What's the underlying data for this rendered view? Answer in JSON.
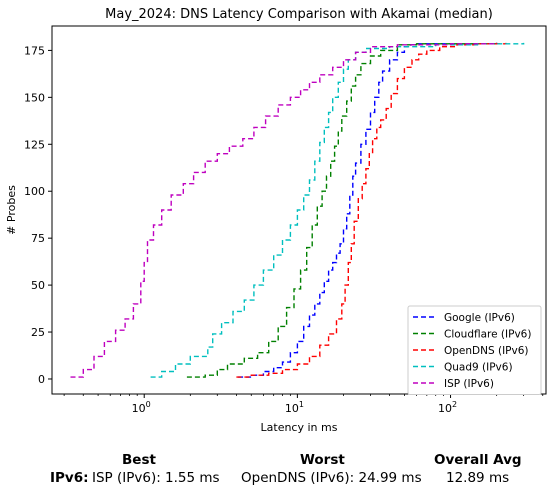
{
  "chart_data": {
    "type": "line",
    "title": "May_2024: DNS Latency Comparison with Akamai (median)",
    "xlabel": "Latency in ms",
    "ylabel": "# Probes",
    "xscale": "log",
    "xlim": [
      0.25,
      420
    ],
    "ylim": [
      -8,
      188
    ],
    "xticks": [
      {
        "value": 1,
        "label": "10^0"
      },
      {
        "value": 10,
        "label": "10^1"
      },
      {
        "value": 100,
        "label": "10^2"
      }
    ],
    "yticks": [
      0,
      25,
      50,
      75,
      100,
      125,
      150,
      175
    ],
    "grid": false,
    "legend_position": "lower-right",
    "series": [
      {
        "name": "Google (IPv6)",
        "color": "#0000ff",
        "points": [
          [
            4.1,
            1
          ],
          [
            5,
            2
          ],
          [
            6,
            4
          ],
          [
            7,
            6
          ],
          [
            8,
            9
          ],
          [
            9,
            14
          ],
          [
            10,
            20
          ],
          [
            11,
            28
          ],
          [
            12,
            34
          ],
          [
            13,
            40
          ],
          [
            14,
            46
          ],
          [
            15,
            52
          ],
          [
            16,
            58
          ],
          [
            17,
            62
          ],
          [
            18,
            67
          ],
          [
            19,
            72
          ],
          [
            20,
            80
          ],
          [
            21,
            88
          ],
          [
            22,
            98
          ],
          [
            23,
            108
          ],
          [
            24,
            115
          ],
          [
            26,
            125
          ],
          [
            28,
            133
          ],
          [
            30,
            142
          ],
          [
            32,
            150
          ],
          [
            34,
            158
          ],
          [
            36,
            164
          ],
          [
            40,
            170
          ],
          [
            45,
            174
          ],
          [
            50,
            177
          ],
          [
            55,
            178
          ],
          [
            60,
            178.5
          ],
          [
            200,
            179
          ]
        ]
      },
      {
        "name": "Cloudflare (IPv6)",
        "color": "#008000",
        "points": [
          [
            1.9,
            1
          ],
          [
            2.5,
            2
          ],
          [
            3,
            5
          ],
          [
            3.5,
            8
          ],
          [
            4.5,
            11
          ],
          [
            5.5,
            14
          ],
          [
            6.5,
            20
          ],
          [
            7.5,
            28
          ],
          [
            8.5,
            38
          ],
          [
            9.5,
            48
          ],
          [
            10.5,
            58
          ],
          [
            11.5,
            70
          ],
          [
            12.5,
            82
          ],
          [
            13.5,
            92
          ],
          [
            14.5,
            100
          ],
          [
            15.5,
            108
          ],
          [
            16.5,
            116
          ],
          [
            17.5,
            124
          ],
          [
            18.5,
            132
          ],
          [
            19.5,
            140
          ],
          [
            21,
            148
          ],
          [
            22.5,
            156
          ],
          [
            24,
            162
          ],
          [
            26,
            168
          ],
          [
            30,
            172
          ],
          [
            35,
            175
          ],
          [
            45,
            178
          ],
          [
            60,
            178.5
          ],
          [
            200,
            179
          ]
        ]
      },
      {
        "name": "OpenDNS (IPv6)",
        "color": "#ff0000",
        "points": [
          [
            4,
            1
          ],
          [
            5,
            2
          ],
          [
            6.5,
            3
          ],
          [
            8,
            5
          ],
          [
            10,
            8
          ],
          [
            12,
            12
          ],
          [
            14,
            18
          ],
          [
            16,
            24
          ],
          [
            18,
            32
          ],
          [
            19.5,
            40
          ],
          [
            20.5,
            50
          ],
          [
            21.5,
            62
          ],
          [
            22.5,
            72
          ],
          [
            23.5,
            84
          ],
          [
            25,
            96
          ],
          [
            26.5,
            104
          ],
          [
            28,
            112
          ],
          [
            29.5,
            120
          ],
          [
            31,
            128
          ],
          [
            33,
            134
          ],
          [
            35,
            138
          ],
          [
            38,
            144
          ],
          [
            41,
            152
          ],
          [
            45,
            160
          ],
          [
            50,
            166
          ],
          [
            56,
            170
          ],
          [
            62,
            173
          ],
          [
            70,
            175
          ],
          [
            85,
            177
          ],
          [
            110,
            178
          ],
          [
            150,
            178.5
          ],
          [
            230,
            179
          ]
        ]
      },
      {
        "name": "Quad9 (IPv6)",
        "color": "#00bfbf",
        "points": [
          [
            1.1,
            1
          ],
          [
            1.3,
            4
          ],
          [
            1.6,
            8
          ],
          [
            2,
            12
          ],
          [
            2.6,
            17
          ],
          [
            2.8,
            24
          ],
          [
            3.2,
            30
          ],
          [
            3.8,
            36
          ],
          [
            4.5,
            42
          ],
          [
            5.2,
            50
          ],
          [
            6,
            58
          ],
          [
            7,
            66
          ],
          [
            8,
            74
          ],
          [
            9,
            82
          ],
          [
            10,
            90
          ],
          [
            11,
            98
          ],
          [
            12,
            106
          ],
          [
            13,
            116
          ],
          [
            14,
            126
          ],
          [
            15,
            134
          ],
          [
            16,
            142
          ],
          [
            17,
            150
          ],
          [
            18.5,
            158
          ],
          [
            20,
            165
          ],
          [
            21.5,
            170
          ],
          [
            24,
            174
          ],
          [
            28,
            176
          ],
          [
            40,
            177
          ],
          [
            80,
            178
          ],
          [
            150,
            178.5
          ],
          [
            300,
            179
          ]
        ]
      },
      {
        "name": "ISP (IPv6)",
        "color": "#bf00bf",
        "points": [
          [
            0.33,
            1
          ],
          [
            0.4,
            5
          ],
          [
            0.47,
            12
          ],
          [
            0.55,
            20
          ],
          [
            0.65,
            26
          ],
          [
            0.75,
            32
          ],
          [
            0.85,
            40
          ],
          [
            0.95,
            52
          ],
          [
            1.0,
            62
          ],
          [
            1.05,
            74
          ],
          [
            1.15,
            82
          ],
          [
            1.3,
            90
          ],
          [
            1.5,
            98
          ],
          [
            1.8,
            104
          ],
          [
            2.1,
            110
          ],
          [
            2.5,
            116
          ],
          [
            3,
            120
          ],
          [
            3.6,
            124
          ],
          [
            4.4,
            128
          ],
          [
            5.2,
            134
          ],
          [
            6.2,
            140
          ],
          [
            7.5,
            146
          ],
          [
            9,
            150
          ],
          [
            10.5,
            154
          ],
          [
            12,
            158
          ],
          [
            14,
            162
          ],
          [
            17,
            166
          ],
          [
            20,
            170
          ],
          [
            24,
            174
          ],
          [
            30,
            177
          ],
          [
            45,
            178
          ],
          [
            100,
            178.5
          ],
          [
            200,
            179
          ]
        ]
      }
    ]
  },
  "summary": {
    "row_label": "IPv6:",
    "best_heading": "Best",
    "worst_heading": "Worst",
    "avg_heading": "Overall Avg",
    "best_value": "ISP (IPv6): 1.55 ms",
    "worst_value": "OpenDNS (IPv6): 24.99 ms",
    "avg_value": "12.89 ms"
  }
}
